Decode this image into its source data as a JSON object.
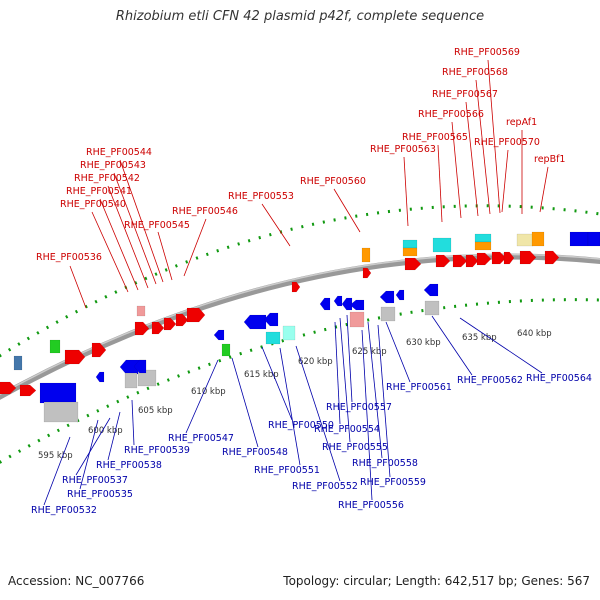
{
  "title": "Rhizobium etli CFN 42 plasmid p42f, complete sequence",
  "footer": {
    "accession": "Accession: NC_007766",
    "stats": "Topology: circular; Length: 642,517 bp; Genes: 567"
  },
  "colors": {
    "forward_label": "#cc0000",
    "reverse_label": "#0000aa",
    "forward_gene": "#ee0000",
    "reverse_gene": "#0000ee",
    "backbone": "#888888",
    "tick": "#119911"
  },
  "tick_labels": [
    "595 kbp",
    "600 kbp",
    "605 kbp",
    "610 kbp",
    "615 kbp",
    "620 kbp",
    "625 kbp",
    "630 kbp",
    "635 kbp",
    "640 kbp"
  ],
  "forward_labels": [
    "RHE_PF00536",
    "RHE_PF00540",
    "RHE_PF00541",
    "RHE_PF00542",
    "RHE_PF00543",
    "RHE_PF00544",
    "RHE_PF00545",
    "RHE_PF00546",
    "RHE_PF00553",
    "RHE_PF00560",
    "RHE_PF00563",
    "RHE_PF00565",
    "RHE_PF00566",
    "RHE_PF00567",
    "RHE_PF00568",
    "RHE_PF00569",
    "RHE_PF00570",
    "repAf1",
    "repBf1"
  ],
  "reverse_labels": [
    "RHE_PF00532",
    "RHE_PF00535",
    "RHE_PF00537",
    "RHE_PF00538",
    "RHE_PF00539",
    "RHE_PF00547",
    "RHE_PF00548",
    "RHE_PF00550",
    "RHE_PF00551",
    "RHE_PF00552",
    "RHE_PF00554",
    "RHE_PF00555",
    "RHE_PF00556",
    "RHE_PF00557",
    "RHE_PF00558",
    "RHE_PF00559",
    "RHE_PF00561",
    "RHE_PF00562",
    "RHE_PF00564"
  ]
}
